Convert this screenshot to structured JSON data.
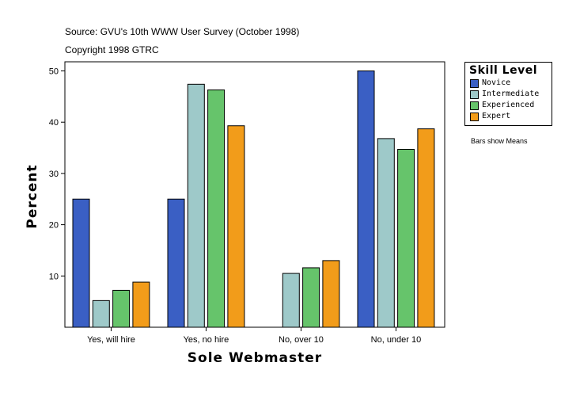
{
  "header": {
    "source": "Source: GVU's 10th WWW User Survey (October 1998)",
    "copyright": "Copyright 1998 GTRC"
  },
  "note": "Bars show Means",
  "chart_data": {
    "type": "bar",
    "title": "",
    "xlabel": "Sole Webmaster",
    "ylabel": "Percent",
    "categories": [
      "Yes, will hire",
      "Yes, no hire",
      "No, over 10",
      "No, under 10"
    ],
    "ylim": [
      0,
      50
    ],
    "yticks": [
      10,
      20,
      30,
      40,
      50
    ],
    "legend_title": "Skill Level",
    "legend_position": "right",
    "grid": false,
    "series": [
      {
        "name": "Novice",
        "color": "#3a5fc4",
        "values": [
          25,
          25,
          null,
          50
        ]
      },
      {
        "name": "Intermediate",
        "color": "#9ec9c9",
        "values": [
          5.2,
          47.4,
          10.5,
          36.8
        ]
      },
      {
        "name": "Experienced",
        "color": "#66c46b",
        "values": [
          7.2,
          46.3,
          11.6,
          34.7
        ]
      },
      {
        "name": "Expert",
        "color": "#f29c1a",
        "values": [
          8.8,
          39.3,
          13.0,
          38.7
        ]
      }
    ]
  }
}
